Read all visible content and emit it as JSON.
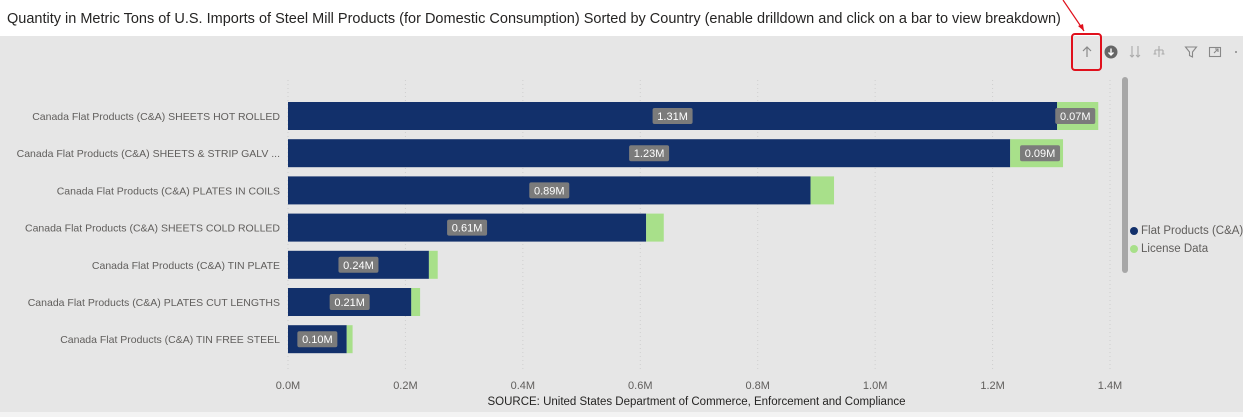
{
  "title": "Quantity in Metric Tons of U.S. Imports of Steel Mill Products (for Domestic Consumption) Sorted by Country (enable drilldown and click on a bar to view breakdown)",
  "source_text": "SOURCE: United States Department of Commerce, Enforcement and Compliance",
  "colors": {
    "series1": "#12306b",
    "series2": "#a8e08a",
    "data_label_bg": "#7b7b7b",
    "highlight": "#e0101c"
  },
  "toolbar": {
    "icons": [
      "drill-up-icon",
      "drilldown-toggle-icon",
      "next-level-icon",
      "expand-hierarchy-icon",
      "filter-icon",
      "focus-mode-icon",
      "more-options-icon"
    ]
  },
  "legend": {
    "items": [
      {
        "label": "Flat Products (C&A)",
        "color": "#12306b"
      },
      {
        "label": "License Data",
        "color": "#a8e08a"
      }
    ]
  },
  "chart_data": {
    "type": "bar",
    "orientation": "horizontal",
    "stacked": true,
    "categories": [
      "Canada Flat Products (C&A) SHEETS HOT ROLLED",
      "Canada Flat Products (C&A) SHEETS & STRIP GALV ...",
      "Canada Flat Products (C&A) PLATES IN COILS",
      "Canada Flat Products (C&A) SHEETS COLD ROLLED",
      "Canada Flat Products (C&A) TIN PLATE",
      "Canada Flat Products (C&A) PLATES CUT LENGTHS",
      "Canada Flat Products (C&A) TIN FREE STEEL"
    ],
    "series": [
      {
        "name": "Flat Products (C&A)",
        "values": [
          1310000,
          1230000,
          890000,
          610000,
          240000,
          210000,
          100000
        ],
        "labels": [
          "1.31M",
          "1.23M",
          "0.89M",
          "0.61M",
          "0.24M",
          "0.21M",
          "0.10M"
        ]
      },
      {
        "name": "License Data",
        "values": [
          70000,
          90000,
          40000,
          30000,
          15000,
          15000,
          10000
        ],
        "labels": [
          "0.07M",
          "0.09M",
          "",
          "",
          "",
          "",
          ""
        ]
      }
    ],
    "xlim": [
      0,
      1400000
    ],
    "xticks": [
      0,
      200000,
      400000,
      600000,
      800000,
      1000000,
      1200000,
      1400000
    ],
    "xtick_labels": [
      "0.0M",
      "0.2M",
      "0.4M",
      "0.6M",
      "0.8M",
      "1.0M",
      "1.2M",
      "1.4M"
    ],
    "grid": true,
    "legend_position": "right"
  }
}
